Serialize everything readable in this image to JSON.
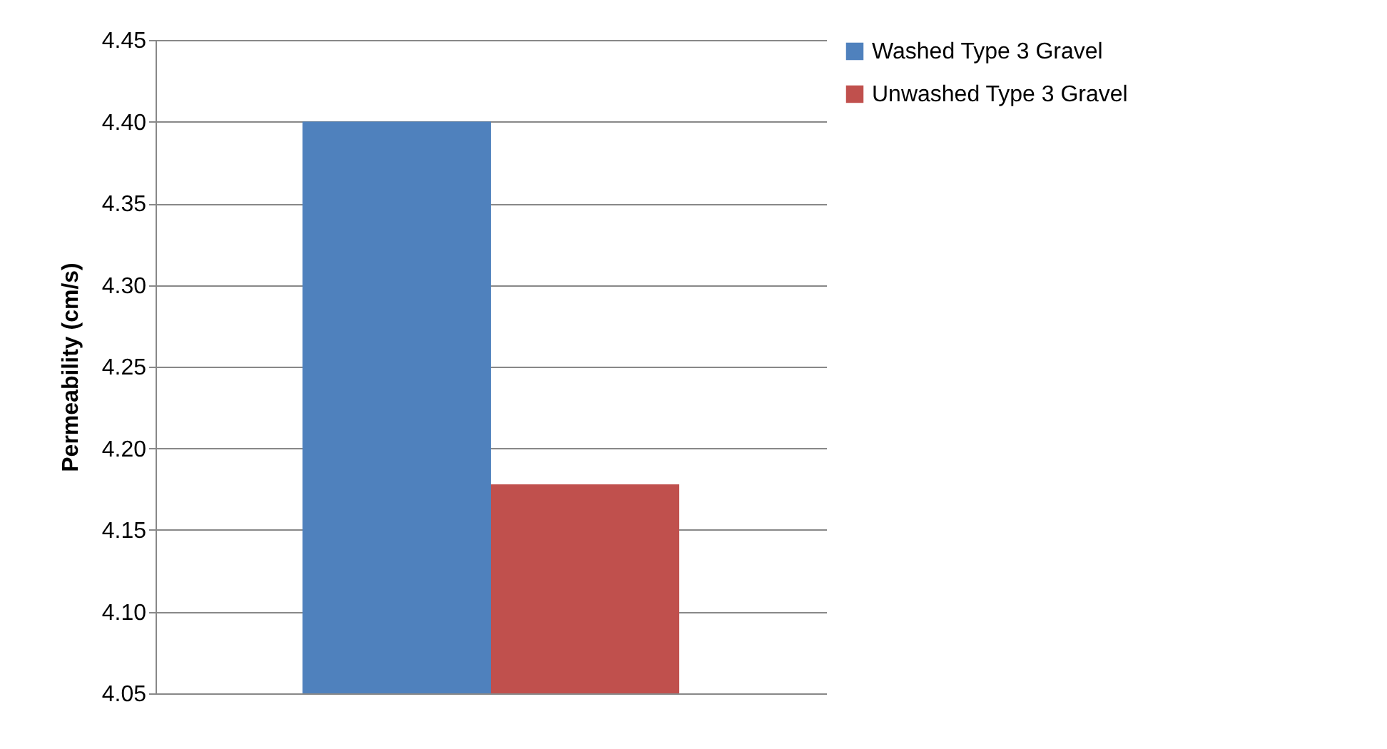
{
  "chart_data": {
    "type": "bar",
    "ylabel": "Permeability (cm/s)",
    "categories": [
      null
    ],
    "series": [
      {
        "name": "Washed Type 3 Gravel",
        "color": "#4f81bd",
        "values": [
          4.4
        ]
      },
      {
        "name": "Unwashed Type 3 Gravel",
        "color": "#c0504d",
        "values": [
          4.178
        ]
      }
    ],
    "ylim": [
      4.05,
      4.45
    ],
    "yticks": [
      {
        "value": 4.05,
        "label": "4.05"
      },
      {
        "value": 4.1,
        "label": "4.10"
      },
      {
        "value": 4.15,
        "label": "4.15"
      },
      {
        "value": 4.2,
        "label": "4.20"
      },
      {
        "value": 4.25,
        "label": "4.25"
      },
      {
        "value": 4.3,
        "label": "4.30"
      },
      {
        "value": 4.35,
        "label": "4.35"
      },
      {
        "value": 4.4,
        "label": "4.40"
      },
      {
        "value": 4.45,
        "label": "4.45"
      }
    ],
    "grid": "y",
    "legend": "right"
  }
}
